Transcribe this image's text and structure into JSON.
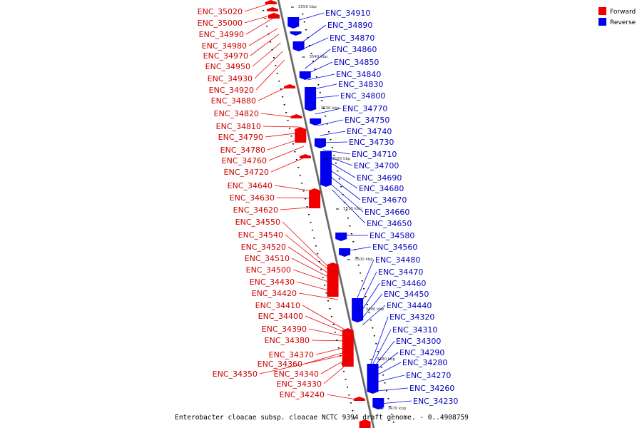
{
  "caption": "Enterobacter cloacae subsp. cloacae NCTC 9394 draft genome. - 0..4908759",
  "legend": {
    "forward": {
      "label": "Forward",
      "color": "#ee0000"
    },
    "reverse": {
      "label": "Reverse",
      "color": "#0000ee"
    }
  },
  "ticks": [
    "3550 kbp",
    "3540 kbp",
    "3530 kbp",
    "3520 kbp",
    "3510 kbp",
    "3500 kbp",
    "3490 kbp",
    "3480 kbp",
    "3470 kbp"
  ],
  "forward_genes": [
    "ENC_35020",
    "ENC_35000",
    "ENC_34990",
    "ENC_34980",
    "ENC_34970",
    "ENC_34950",
    "ENC_34930",
    "ENC_34920",
    "ENC_34880",
    "ENC_34820",
    "ENC_34810",
    "ENC_34790",
    "ENC_34780",
    "ENC_34760",
    "ENC_34720",
    "ENC_34640",
    "ENC_34630",
    "ENC_34620",
    "ENC_34550",
    "ENC_34540",
    "ENC_34520",
    "ENC_34510",
    "ENC_34500",
    "ENC_34430",
    "ENC_34420",
    "ENC_34410",
    "ENC_34400",
    "ENC_34390",
    "ENC_34380",
    "ENC_34370",
    "ENC_34360",
    "ENC_34350",
    "ENC_34340",
    "ENC_34330",
    "ENC_34240"
  ],
  "reverse_genes": [
    "ENC_34910",
    "ENC_34890",
    "ENC_34870",
    "ENC_34860",
    "ENC_34850",
    "ENC_34840",
    "ENC_34830",
    "ENC_34800",
    "ENC_34770",
    "ENC_34750",
    "ENC_34740",
    "ENC_34730",
    "ENC_34710",
    "ENC_34700",
    "ENC_34690",
    "ENC_34680",
    "ENC_34670",
    "ENC_34660",
    "ENC_34650",
    "ENC_34580",
    "ENC_34560",
    "ENC_34480",
    "ENC_34470",
    "ENC_34460",
    "ENC_34450",
    "ENC_34440",
    "ENC_34320",
    "ENC_34310",
    "ENC_34300",
    "ENC_34290",
    "ENC_34280",
    "ENC_34270",
    "ENC_34260",
    "ENC_34230"
  ]
}
